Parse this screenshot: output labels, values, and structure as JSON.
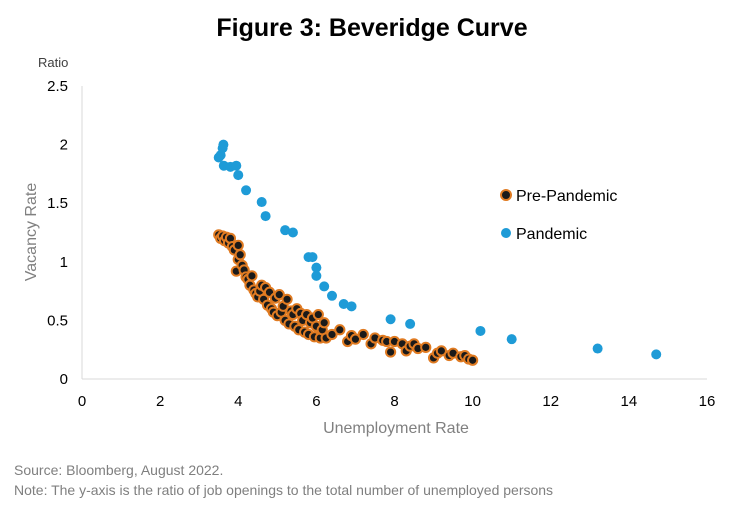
{
  "chart_data": {
    "type": "scatter",
    "title": "Figure 3: Beveridge Curve",
    "xlabel": "Unemployment Rate",
    "ylabel": "Vacancy Rate",
    "y_unit": "Ratio",
    "xlim": [
      0,
      16
    ],
    "ylim": [
      0,
      2.5
    ],
    "xticks": [
      "0",
      "2",
      "4",
      "6",
      "8",
      "10",
      "12",
      "14",
      "16"
    ],
    "yticks": [
      "0",
      "0.5",
      "1",
      "1.5",
      "2",
      "2.5"
    ],
    "grid": false,
    "legend_position": "right",
    "series": [
      {
        "name": "Pre-Pandemic",
        "color": "#1a1a1a",
        "edge_color": "#e07b22",
        "points": [
          [
            3.5,
            1.23
          ],
          [
            3.55,
            1.2
          ],
          [
            3.6,
            1.22
          ],
          [
            3.65,
            1.18
          ],
          [
            3.7,
            1.21
          ],
          [
            3.75,
            1.16
          ],
          [
            3.8,
            1.2
          ],
          [
            3.85,
            1.13
          ],
          [
            3.9,
            1.1
          ],
          [
            3.95,
            0.92
          ],
          [
            4.0,
            1.14
          ],
          [
            4.0,
            1.02
          ],
          [
            4.05,
            1.06
          ],
          [
            4.1,
            0.97
          ],
          [
            4.15,
            0.93
          ],
          [
            4.2,
            0.87
          ],
          [
            4.25,
            0.85
          ],
          [
            4.3,
            0.8
          ],
          [
            4.35,
            0.88
          ],
          [
            4.4,
            0.76
          ],
          [
            4.45,
            0.73
          ],
          [
            4.5,
            0.7
          ],
          [
            4.55,
            0.75
          ],
          [
            4.6,
            0.8
          ],
          [
            4.65,
            0.68
          ],
          [
            4.7,
            0.78
          ],
          [
            4.75,
            0.63
          ],
          [
            4.8,
            0.74
          ],
          [
            4.85,
            0.6
          ],
          [
            4.9,
            0.57
          ],
          [
            4.95,
            0.69
          ],
          [
            5.0,
            0.54
          ],
          [
            5.05,
            0.72
          ],
          [
            5.1,
            0.57
          ],
          [
            5.15,
            0.62
          ],
          [
            5.2,
            0.5
          ],
          [
            5.25,
            0.68
          ],
          [
            5.3,
            0.47
          ],
          [
            5.35,
            0.58
          ],
          [
            5.4,
            0.55
          ],
          [
            5.45,
            0.45
          ],
          [
            5.5,
            0.6
          ],
          [
            5.55,
            0.42
          ],
          [
            5.6,
            0.56
          ],
          [
            5.65,
            0.5
          ],
          [
            5.7,
            0.4
          ],
          [
            5.75,
            0.55
          ],
          [
            5.8,
            0.38
          ],
          [
            5.85,
            0.48
          ],
          [
            5.9,
            0.52
          ],
          [
            5.95,
            0.36
          ],
          [
            6.0,
            0.45
          ],
          [
            6.05,
            0.55
          ],
          [
            6.1,
            0.35
          ],
          [
            6.15,
            0.42
          ],
          [
            6.2,
            0.48
          ],
          [
            6.25,
            0.35
          ],
          [
            6.4,
            0.38
          ],
          [
            6.6,
            0.42
          ],
          [
            6.8,
            0.32
          ],
          [
            6.9,
            0.37
          ],
          [
            7.0,
            0.34
          ],
          [
            7.2,
            0.38
          ],
          [
            7.4,
            0.3
          ],
          [
            7.5,
            0.35
          ],
          [
            7.7,
            0.33
          ],
          [
            7.8,
            0.32
          ],
          [
            7.9,
            0.23
          ],
          [
            8.0,
            0.32
          ],
          [
            8.2,
            0.3
          ],
          [
            8.3,
            0.24
          ],
          [
            8.4,
            0.28
          ],
          [
            8.5,
            0.3
          ],
          [
            8.6,
            0.26
          ],
          [
            8.8,
            0.27
          ],
          [
            9.0,
            0.18
          ],
          [
            9.1,
            0.22
          ],
          [
            9.2,
            0.24
          ],
          [
            9.4,
            0.2
          ],
          [
            9.5,
            0.22
          ],
          [
            9.7,
            0.19
          ],
          [
            9.8,
            0.2
          ],
          [
            9.9,
            0.17
          ],
          [
            10.0,
            0.16
          ]
        ]
      },
      {
        "name": "Pandemic",
        "color": "#1e9bd7",
        "points": [
          [
            3.5,
            1.89
          ],
          [
            3.55,
            1.91
          ],
          [
            3.6,
            1.97
          ],
          [
            3.62,
            2.0
          ],
          [
            3.63,
            1.82
          ],
          [
            3.8,
            1.81
          ],
          [
            3.95,
            1.82
          ],
          [
            4.0,
            1.74
          ],
          [
            4.2,
            1.61
          ],
          [
            4.6,
            1.51
          ],
          [
            4.7,
            1.39
          ],
          [
            5.2,
            1.27
          ],
          [
            5.4,
            1.25
          ],
          [
            5.8,
            1.04
          ],
          [
            5.9,
            1.04
          ],
          [
            6.0,
            0.95
          ],
          [
            6.0,
            0.88
          ],
          [
            6.2,
            0.79
          ],
          [
            6.4,
            0.71
          ],
          [
            6.7,
            0.64
          ],
          [
            6.9,
            0.62
          ],
          [
            7.9,
            0.51
          ],
          [
            8.4,
            0.47
          ],
          [
            10.2,
            0.41
          ],
          [
            11.0,
            0.34
          ],
          [
            13.2,
            0.26
          ],
          [
            14.7,
            0.21
          ]
        ]
      }
    ]
  },
  "footnotes": {
    "source": "Source: Bloomberg, August 2022.",
    "note": "Note: The y-axis is the ratio of job openings to the total number of unemployed persons"
  }
}
